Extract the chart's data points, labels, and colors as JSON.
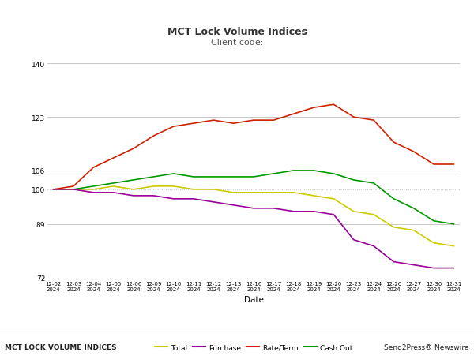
{
  "title": "MCT Lock Volume Indices",
  "subtitle": "Client code:",
  "xlabel": "Date",
  "ylim": [
    72,
    140
  ],
  "yticks": [
    72,
    89,
    100,
    106,
    123,
    140
  ],
  "footer_left": "MCT LOCK VOLUME INDICES",
  "footer_right": "Send2Press® Newswire",
  "dates": [
    "12-02",
    "12-03",
    "12-04",
    "12-05",
    "12-06",
    "12-09",
    "12-10",
    "12-11",
    "12-12",
    "12-13",
    "12-16",
    "12-17",
    "12-18",
    "12-19",
    "12-20",
    "12-23",
    "12-24",
    "12-26",
    "12-27",
    "12-30",
    "12-31"
  ],
  "total": [
    100,
    100,
    100,
    101,
    100,
    101,
    101,
    100,
    100,
    99,
    99,
    99,
    99,
    98,
    97,
    93,
    92,
    88,
    87,
    83,
    82
  ],
  "purchase": [
    100,
    100,
    99,
    99,
    98,
    98,
    97,
    97,
    96,
    95,
    94,
    94,
    93,
    93,
    92,
    84,
    82,
    77,
    76,
    75,
    75
  ],
  "rateterm": [
    100,
    101,
    107,
    110,
    113,
    117,
    120,
    121,
    122,
    121,
    122,
    122,
    124,
    126,
    127,
    123,
    122,
    115,
    112,
    108,
    108
  ],
  "cashout": [
    100,
    100,
    101,
    102,
    103,
    104,
    105,
    104,
    104,
    104,
    104,
    105,
    106,
    106,
    105,
    103,
    102,
    97,
    94,
    90,
    89
  ],
  "colors": {
    "total": "#cccc00",
    "purchase": "#990099",
    "rateterm": "#cc2200",
    "cashout": "#009900"
  },
  "legend_labels": [
    "Total",
    "Purchase",
    "Rate/Term",
    "Cash Out"
  ],
  "background_color": "#ffffff",
  "grid_color": "#c8c8c8",
  "dotted_line_y": 100,
  "title_fontsize": 9,
  "subtitle_fontsize": 8
}
